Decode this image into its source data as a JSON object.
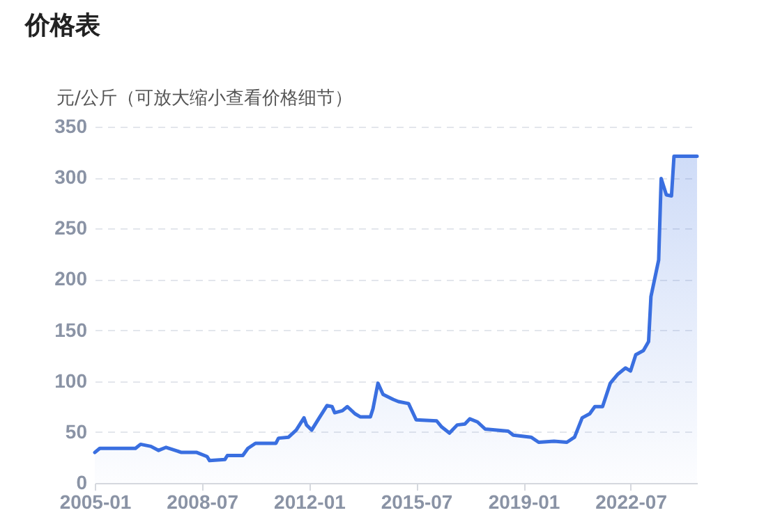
{
  "chart_data": {
    "type": "area",
    "title": "价格表",
    "ylabel": "元/公斤（可放大缩小查看价格细节）",
    "x": [
      "2005-01",
      "2005-03",
      "2006-05",
      "2006-07",
      "2006-11",
      "2007-02",
      "2007-05",
      "2007-11",
      "2008-05",
      "2008-09",
      "2008-10",
      "2009-04",
      "2009-05",
      "2009-11",
      "2010-01",
      "2010-04",
      "2010-12",
      "2011-01",
      "2011-05",
      "2011-08",
      "2011-11",
      "2011-12",
      "2012-02",
      "2012-05",
      "2012-08",
      "2012-10",
      "2012-11",
      "2013-02",
      "2013-04",
      "2013-07",
      "2013-09",
      "2014-01",
      "2014-02",
      "2014-04",
      "2014-06",
      "2014-10",
      "2014-12",
      "2015-04",
      "2015-07",
      "2016-03",
      "2016-05",
      "2016-08",
      "2016-11",
      "2017-02",
      "2017-04",
      "2017-07",
      "2017-10",
      "2018-07",
      "2018-09",
      "2019-04",
      "2019-07",
      "2020-01",
      "2020-06",
      "2020-09",
      "2020-12",
      "2021-03",
      "2021-05",
      "2021-08",
      "2021-11",
      "2022-02",
      "2022-05",
      "2022-07",
      "2022-09",
      "2022-12",
      "2023-02",
      "2023-03",
      "2023-06",
      "2023-07",
      "2023-09",
      "2023-11",
      "2023-12",
      "2024-09"
    ],
    "series": [
      {
        "color": "#3a6fe0",
        "values": [
          30,
          34,
          34,
          38,
          36,
          32,
          35,
          30,
          30,
          26,
          22,
          23,
          27,
          27,
          34,
          39,
          39,
          44,
          45,
          52,
          64,
          57,
          52,
          64,
          76,
          75,
          69,
          71,
          75,
          68,
          65,
          65,
          73,
          98,
          87,
          82,
          80,
          78,
          62,
          61,
          55,
          49,
          57,
          58,
          63,
          60,
          53,
          51,
          47,
          45,
          40,
          41,
          40,
          45,
          64,
          68,
          75,
          75,
          98,
          107,
          113,
          110,
          126,
          130,
          139,
          183,
          219,
          299,
          283,
          282,
          321,
          321
        ]
      }
    ],
    "xlim": [
      "2005-01",
      "2024-09"
    ],
    "xticks": [
      "2005-01",
      "2008-07",
      "2012-01",
      "2015-07",
      "2019-01",
      "2022-07"
    ],
    "ylim": [
      0,
      350
    ],
    "yticks": [
      0,
      50,
      100,
      150,
      200,
      250,
      300,
      350
    ],
    "grid": "y",
    "marker": "none",
    "line_style": "solid"
  }
}
